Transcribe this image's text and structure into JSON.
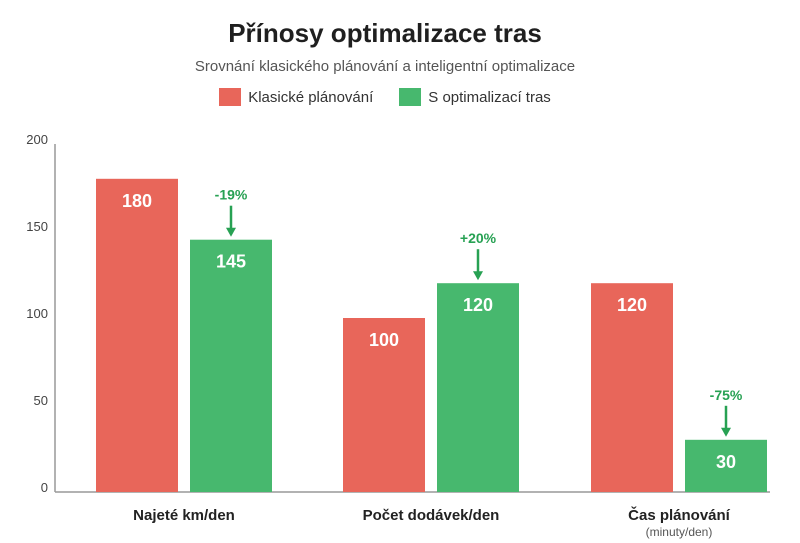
{
  "chart_data": {
    "type": "bar",
    "title": "Přínosy optimalizace tras",
    "subtitle": "Srovnání klasického plánování a inteligentní optimalizace",
    "categories": [
      "Najeté km/den",
      "Počet dodávek/den",
      "Čas plánování"
    ],
    "category_sublabels": [
      "",
      "",
      "(minuty/den)"
    ],
    "series": [
      {
        "name": "Klasické plánování",
        "color": "#e8665a",
        "values": [
          180,
          100,
          120
        ],
        "display_values": [
          "180",
          "100",
          "120"
        ]
      },
      {
        "name": "S optimalizací tras",
        "color": "#47b86e",
        "values": [
          145,
          120,
          30
        ],
        "display_values": [
          "145",
          "120",
          "30"
        ]
      }
    ],
    "changes": [
      "-19%",
      "+20%",
      "-75%"
    ],
    "change_color": "#27a153",
    "yticks": [
      0,
      50,
      100,
      150,
      200
    ],
    "ylim": [
      0,
      200
    ],
    "legend_position": "top-center",
    "grid": false
  }
}
